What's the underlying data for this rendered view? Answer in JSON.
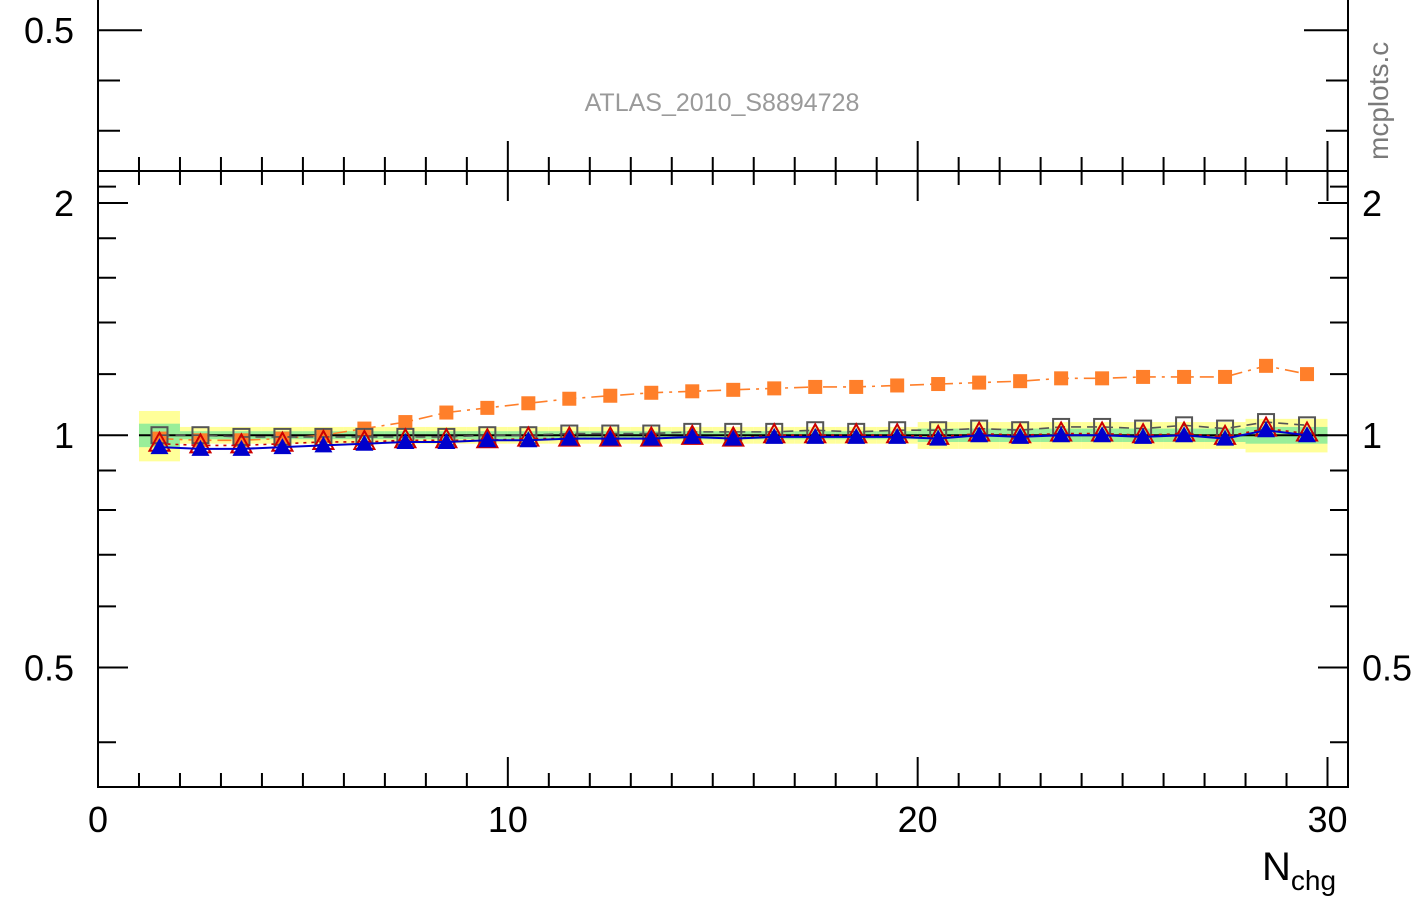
{
  "analysis_label": "ATLAS_2010_S8894728",
  "side_label": "mcplots.c",
  "chart_data": [
    {
      "panel": "main (partially visible, top)",
      "type": "line",
      "visible_y_tick_labels": [
        "0.5"
      ],
      "ylim_visible": [
        0.22,
        0.58
      ]
    },
    {
      "panel": "ratio",
      "type": "scatter",
      "xlabel_main": "N",
      "xlabel_sub": "chg",
      "xlim": [
        0,
        30.5
      ],
      "ylim": [
        0.35,
        2.2
      ],
      "x_ticks": [
        0,
        10,
        20,
        30
      ],
      "y_ticks_left": [
        2,
        1,
        0.5
      ],
      "y_ticks_right": [
        2,
        1,
        0.5
      ],
      "x": [
        1.5,
        2.5,
        3.5,
        4.5,
        5.5,
        6.5,
        7.5,
        8.5,
        9.5,
        10.5,
        11.5,
        12.5,
        13.5,
        14.5,
        15.5,
        16.5,
        17.5,
        18.5,
        19.5,
        20.5,
        21.5,
        22.5,
        23.5,
        24.5,
        25.5,
        26.5,
        27.5,
        28.5,
        29.5
      ],
      "bands": [
        {
          "name": "",
          "color": "#ffff99",
          "half_width": [
            0.075,
            0.025,
            0.025,
            0.025,
            0.025,
            0.025,
            0.025,
            0.025,
            0.025,
            0.025,
            0.025,
            0.025,
            0.025,
            0.025,
            0.025,
            0.025,
            0.025,
            0.025,
            0.025,
            0.04,
            0.04,
            0.04,
            0.04,
            0.04,
            0.04,
            0.04,
            0.04,
            0.05,
            0.05
          ]
        },
        {
          "name": "",
          "color": "#99ee99",
          "half_width": [
            0.035,
            0.012,
            0.012,
            0.012,
            0.012,
            0.012,
            0.012,
            0.012,
            0.012,
            0.012,
            0.012,
            0.012,
            0.012,
            0.012,
            0.012,
            0.012,
            0.012,
            0.012,
            0.012,
            0.02,
            0.02,
            0.02,
            0.02,
            0.02,
            0.02,
            0.02,
            0.02,
            0.025,
            0.025
          ]
        }
      ],
      "reference_y": 1,
      "series": [
        {
          "color": "#ff7f2a",
          "marker": "filled-square",
          "line": "dash-dot",
          "values": [
            0.99,
            0.985,
            0.985,
            0.99,
            1.0,
            1.02,
            1.04,
            1.07,
            1.085,
            1.1,
            1.115,
            1.125,
            1.135,
            1.14,
            1.145,
            1.15,
            1.155,
            1.155,
            1.16,
            1.165,
            1.17,
            1.175,
            1.185,
            1.185,
            1.19,
            1.19,
            1.19,
            1.23,
            1.2
          ]
        },
        {
          "color": "#555555",
          "marker": "open-square",
          "line": "dash",
          "values": [
            1.0,
            1.0,
            0.995,
            0.995,
            0.995,
            0.995,
            0.995,
            0.995,
            1.0,
            1.0,
            1.005,
            1.005,
            1.005,
            1.01,
            1.01,
            1.01,
            1.015,
            1.01,
            1.015,
            1.015,
            1.02,
            1.015,
            1.025,
            1.025,
            1.02,
            1.03,
            1.02,
            1.04,
            1.03
          ]
        },
        {
          "color": "#cc0000",
          "marker": "open-triangle",
          "line": "dot",
          "values": [
            0.975,
            0.97,
            0.97,
            0.975,
            0.98,
            0.98,
            0.985,
            0.985,
            0.985,
            0.99,
            0.99,
            0.99,
            0.99,
            0.995,
            0.99,
            1.0,
            1.0,
            1.0,
            1.0,
            0.995,
            1.005,
            1.0,
            1.005,
            1.005,
            1.0,
            1.005,
            0.995,
            1.02,
            1.005
          ]
        },
        {
          "color": "#0000cc",
          "marker": "filled-triangle",
          "line": "solid",
          "values": [
            0.965,
            0.96,
            0.96,
            0.965,
            0.97,
            0.975,
            0.98,
            0.98,
            0.985,
            0.985,
            0.99,
            0.99,
            0.99,
            0.995,
            0.99,
            0.995,
            0.995,
            0.995,
            0.995,
            0.99,
            1.0,
            0.995,
            1.0,
            1.0,
            0.995,
            1.0,
            0.99,
            1.015,
            1.0
          ]
        }
      ]
    }
  ]
}
